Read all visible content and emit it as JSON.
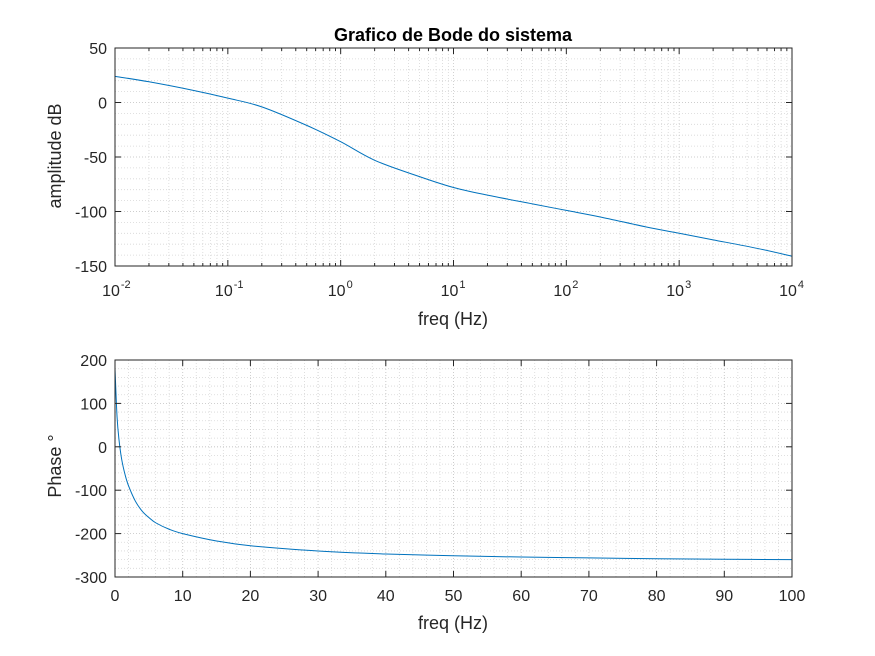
{
  "chart_data": [
    {
      "type": "line",
      "title": "Grafico de Bode do sistema",
      "xlabel": "freq (Hz)",
      "ylabel": "amplitude dB",
      "xscale": "log",
      "xlim": [
        0.01,
        10000
      ],
      "ylim": [
        -150,
        50
      ],
      "xticks": [
        {
          "base": "10",
          "exp": "-2",
          "value": 0.01
        },
        {
          "base": "10",
          "exp": "-1",
          "value": 0.1
        },
        {
          "base": "10",
          "exp": "0",
          "value": 1
        },
        {
          "base": "10",
          "exp": "1",
          "value": 10
        },
        {
          "base": "10",
          "exp": "2",
          "value": 100
        },
        {
          "base": "10",
          "exp": "3",
          "value": 1000
        },
        {
          "base": "10",
          "exp": "4",
          "value": 10000
        }
      ],
      "yticks": [
        "50",
        "0",
        "-50",
        "-100",
        "-150"
      ],
      "grid": true,
      "minor_grid": true,
      "series": [
        {
          "color": "#0072BD",
          "x": [
            0.01,
            0.02,
            0.05,
            0.1,
            0.2,
            0.5,
            1,
            2,
            5,
            10,
            20,
            50,
            100,
            200,
            500,
            1000,
            2000,
            5000,
            10000
          ],
          "y": [
            24,
            19,
            11,
            4,
            -4,
            -21,
            -36,
            -53,
            -68,
            -78,
            -85,
            -93,
            -99,
            -105,
            -114,
            -120,
            -126,
            -134,
            -141
          ]
        }
      ]
    },
    {
      "type": "line",
      "title": "",
      "xlabel": "freq (Hz)",
      "ylabel": "Phase °",
      "xscale": "linear",
      "xlim": [
        0,
        100
      ],
      "ylim": [
        -300,
        200
      ],
      "xticks": [
        "0",
        "10",
        "20",
        "30",
        "40",
        "50",
        "60",
        "70",
        "80",
        "90",
        "100"
      ],
      "yticks": [
        "200",
        "100",
        "0",
        "-100",
        "-200",
        "-300"
      ],
      "grid": true,
      "minor_grid": true,
      "series": [
        {
          "color": "#0072BD",
          "x": [
            0,
            0.3,
            0.6,
            1,
            1.5,
            2,
            3,
            4,
            5,
            6,
            8,
            10,
            15,
            20,
            30,
            40,
            50,
            60,
            70,
            80,
            90,
            100
          ],
          "y": [
            180,
            70,
            15,
            -30,
            -65,
            -90,
            -125,
            -148,
            -163,
            -175,
            -190,
            -200,
            -217,
            -228,
            -240,
            -247,
            -251,
            -254,
            -256,
            -258,
            -259,
            -260
          ]
        }
      ]
    }
  ]
}
